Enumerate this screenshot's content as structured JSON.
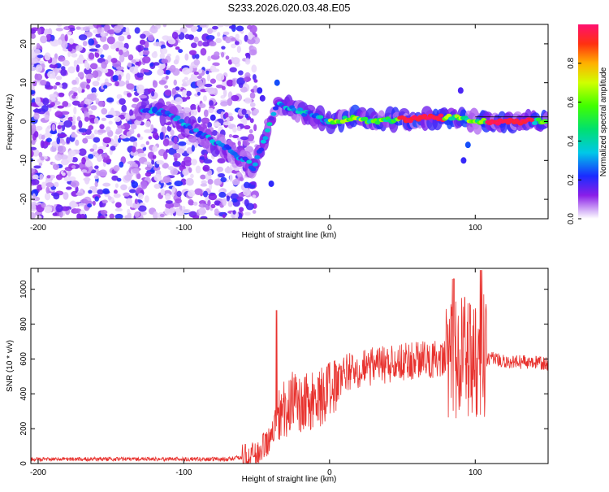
{
  "title": "S233.2026.020.03.48.E05",
  "colors": {
    "line": "#e8322e",
    "frame": "#000000",
    "spectrum_ridge": "#ff2a55",
    "speckle": "#7a14e6"
  },
  "chart_data": [
    {
      "type": "heatmap",
      "name": "spectrogram",
      "xlabel": "Height of straight line (km)",
      "ylabel": "Frequency (Hz)",
      "xlim": [
        -205,
        150
      ],
      "ylim": [
        -25,
        25
      ],
      "xticks": [
        -200,
        -100,
        0,
        100
      ],
      "xtick_labels": [
        "-200",
        "-100",
        "0",
        "100"
      ],
      "yticks": [
        -20,
        -10,
        0,
        10,
        20
      ],
      "ytick_labels": [
        "-20",
        "-10",
        "0",
        "10",
        "20"
      ],
      "colorbar": {
        "label": "Normalized spectral amplitude",
        "range": [
          0,
          1
        ],
        "ticks": [
          0.0,
          0.2,
          0.4,
          0.6,
          0.8
        ],
        "tick_labels": [
          "0.0",
          "0.2",
          "0.4",
          "0.6",
          "0.8"
        ]
      },
      "ridge": {
        "description_points_km_hz": [
          [
            -125,
            3
          ],
          [
            -110,
            2
          ],
          [
            -95,
            -2
          ],
          [
            -80,
            -5
          ],
          [
            -70,
            -7
          ],
          [
            -58,
            -10
          ],
          [
            -52,
            -12
          ],
          [
            -35,
            5
          ],
          [
            -25,
            3
          ],
          [
            -15,
            2
          ],
          [
            0,
            0
          ],
          [
            15,
            1
          ],
          [
            30,
            0
          ],
          [
            50,
            0.5
          ],
          [
            70,
            1
          ],
          [
            90,
            1
          ],
          [
            100,
            0
          ],
          [
            120,
            0
          ],
          [
            150,
            0
          ]
        ]
      }
    },
    {
      "type": "line",
      "name": "snr",
      "xlabel": "Height of straight line (km)",
      "ylabel": "SNR (10 * v/v)",
      "xlim": [
        -205,
        150
      ],
      "ylim": [
        0,
        1120
      ],
      "xticks": [
        -200,
        -100,
        0,
        100
      ],
      "xtick_labels": [
        "-200",
        "-100",
        "0",
        "100"
      ],
      "yticks": [
        0,
        200,
        400,
        600,
        800,
        1000
      ],
      "ytick_labels": [
        "0",
        "200",
        "400",
        "600",
        "800",
        "1000"
      ],
      "envelope_km_snr": [
        [
          -205,
          25
        ],
        [
          -70,
          25
        ],
        [
          -50,
          50
        ],
        [
          -40,
          150
        ],
        [
          -35,
          300
        ],
        [
          -25,
          350
        ],
        [
          -10,
          380
        ],
        [
          0,
          400
        ],
        [
          10,
          520
        ],
        [
          30,
          560
        ],
        [
          50,
          580
        ],
        [
          70,
          600
        ],
        [
          85,
          620
        ],
        [
          100,
          620
        ],
        [
          120,
          590
        ],
        [
          150,
          570
        ]
      ]
    }
  ]
}
